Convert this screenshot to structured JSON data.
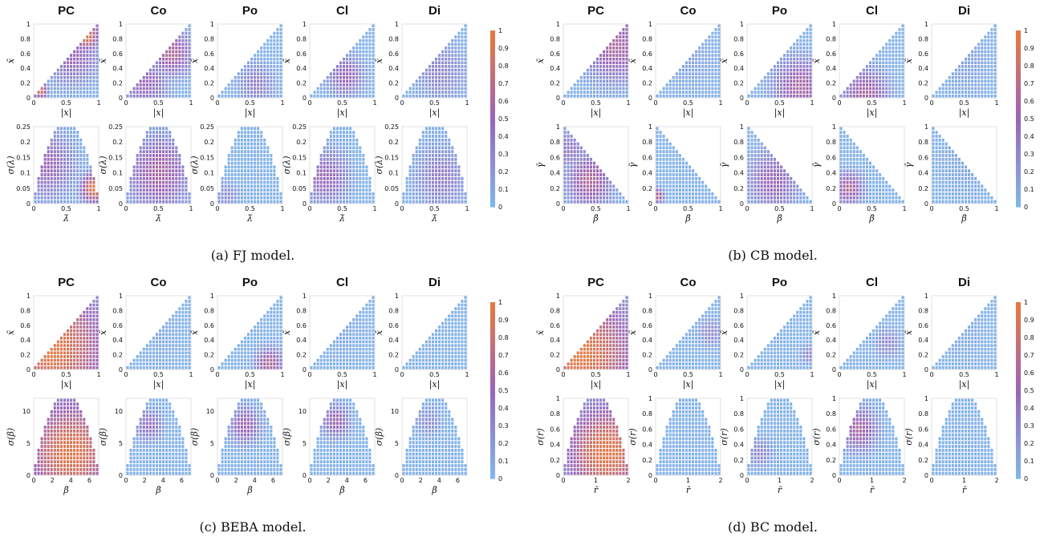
{
  "colorbar": {
    "ticks": [
      "0",
      "0.1",
      "0.2",
      "0.3",
      "0.4",
      "0.5",
      "0.6",
      "0.7",
      "0.8",
      "0.9",
      "1"
    ],
    "low_color": "#7fb8ee",
    "mid_color": "#9a65b8",
    "high_color": "#ea7a3c"
  },
  "chart_data": [
    {
      "type": "heatmap",
      "caption": "(a) FJ model.",
      "columns": [
        "PC",
        "Co",
        "Po",
        "Cl",
        "Di"
      ],
      "colorbar_range": [
        0,
        1
      ],
      "rows": [
        {
          "shape": "triangle",
          "xlabel": "|x|",
          "ylabel": "x̄",
          "xticks": [
            "0",
            "0.5",
            "1"
          ],
          "yticks": [
            "0",
            "0.2",
            "0.4",
            "0.6",
            "0.8",
            "1"
          ],
          "xlim": [
            0,
            1
          ],
          "ylim": [
            0,
            1
          ],
          "grid": 20,
          "hotspots": [
            [
              {
                "x": 0.8,
                "y": 0.85,
                "v": 0.95,
                "s": 0.15
              },
              {
                "x": 0.1,
                "y": 0.1,
                "v": 0.9,
                "s": 0.08
              },
              {
                "x": 0.6,
                "y": 0.6,
                "v": 0.5,
                "s": 0.3
              }
            ],
            [
              {
                "x": 0.7,
                "y": 0.6,
                "v": 0.65,
                "s": 0.22
              },
              {
                "x": 0.3,
                "y": 0.2,
                "v": 0.5,
                "s": 0.25
              }
            ],
            [
              {
                "x": 0.6,
                "y": 0.2,
                "v": 0.35,
                "s": 0.2
              }
            ],
            [
              {
                "x": 0.55,
                "y": 0.3,
                "v": 0.5,
                "s": 0.2
              }
            ],
            [
              {
                "x": 0.6,
                "y": 0.35,
                "v": 0.3,
                "s": 0.3
              }
            ]
          ]
        },
        {
          "shape": "dome",
          "xlabel": "λ̄",
          "ylabel": "σ(λ)",
          "xticks": [
            "0",
            "0.5",
            "1"
          ],
          "yticks": [
            "0",
            "0.05",
            "0.1",
            "0.15",
            "0.2",
            "0.25"
          ],
          "xlim": [
            0,
            1
          ],
          "ylim": [
            0,
            0.25
          ],
          "grid": 20,
          "hotspots": [
            [
              {
                "x": 0.92,
                "y": 0.2,
                "v": 0.95,
                "s": 0.14
              },
              {
                "x": 0.2,
                "y": 0.5,
                "v": 0.5,
                "s": 0.3
              }
            ],
            [
              {
                "x": 0.5,
                "y": 0.4,
                "v": 0.6,
                "s": 0.35
              }
            ],
            [
              {
                "x": 0.15,
                "y": 0.1,
                "v": 0.25,
                "s": 0.15
              }
            ],
            [
              {
                "x": 0.25,
                "y": 0.35,
                "v": 0.5,
                "s": 0.25
              }
            ],
            [
              {
                "x": 0.6,
                "y": 0.35,
                "v": 0.35,
                "s": 0.3
              }
            ]
          ]
        }
      ]
    },
    {
      "type": "heatmap",
      "caption": "(b) CB model.",
      "columns": [
        "PC",
        "Co",
        "Po",
        "Cl",
        "Di"
      ],
      "colorbar_range": [
        0,
        1
      ],
      "rows": [
        {
          "shape": "triangle",
          "xlabel": "|x|",
          "ylabel": "x̄",
          "xticks": [
            "0",
            "0.5",
            "1"
          ],
          "yticks": [
            "0",
            "0.2",
            "0.4",
            "0.6",
            "0.8",
            "1"
          ],
          "xlim": [
            0,
            1
          ],
          "ylim": [
            0,
            1
          ],
          "grid": 20,
          "hotspots": [
            [
              {
                "x": 0.8,
                "y": 0.7,
                "v": 0.6,
                "s": 0.35
              }
            ],
            [
              {
                "x": 0.5,
                "y": 0.5,
                "v": 0.12,
                "s": 0.4
              }
            ],
            [
              {
                "x": 0.8,
                "y": 0.15,
                "v": 0.6,
                "s": 0.28
              }
            ],
            [
              {
                "x": 0.4,
                "y": 0.05,
                "v": 0.6,
                "s": 0.25
              }
            ],
            [
              {
                "x": 0.5,
                "y": 0.5,
                "v": 0.12,
                "s": 0.4
              }
            ]
          ]
        },
        {
          "shape": "triangle_down",
          "xlabel": "β̄",
          "ylabel": "γ̄",
          "xticks": [
            "0",
            "0.5",
            "1"
          ],
          "yticks": [
            "0",
            "0.2",
            "0.4",
            "0.6",
            "0.8",
            "1"
          ],
          "xlim": [
            0,
            1
          ],
          "ylim": [
            0,
            1
          ],
          "grid": 20,
          "hotspots": [
            [
              {
                "x": 0.4,
                "y": 0.3,
                "v": 0.65,
                "s": 0.25
              },
              {
                "x": 0.1,
                "y": 0.7,
                "v": 0.4,
                "s": 0.2
              }
            ],
            [
              {
                "x": 0.03,
                "y": 0.1,
                "v": 0.7,
                "s": 0.07
              }
            ],
            [
              {
                "x": 0.4,
                "y": 0.3,
                "v": 0.5,
                "s": 0.28
              }
            ],
            [
              {
                "x": 0.15,
                "y": 0.2,
                "v": 0.65,
                "s": 0.15
              }
            ],
            [
              {
                "x": 0.5,
                "y": 0.5,
                "v": 0.1,
                "s": 0.4
              }
            ]
          ]
        }
      ]
    },
    {
      "type": "heatmap",
      "caption": "(c) BEBA model.",
      "columns": [
        "PC",
        "Co",
        "Po",
        "Cl",
        "Di"
      ],
      "colorbar_range": [
        0,
        1
      ],
      "rows": [
        {
          "shape": "triangle",
          "xlabel": "|x|",
          "ylabel": "x̄",
          "xticks": [
            "0",
            "0.5",
            "1"
          ],
          "yticks": [
            "0",
            "0.2",
            "0.4",
            "0.6",
            "0.8",
            "1"
          ],
          "xlim": [
            0,
            1
          ],
          "ylim": [
            0,
            1
          ],
          "grid": 20,
          "hotspots": [
            [
              {
                "x": 0.3,
                "y": 0.3,
                "v": 0.97,
                "s": 0.6
              },
              {
                "x": 0.95,
                "y": 0.15,
                "v": 0.45,
                "s": 0.1
              }
            ],
            [
              {
                "x": 0.5,
                "y": 0.5,
                "v": 0.08,
                "s": 0.4
              }
            ],
            [
              {
                "x": 0.8,
                "y": 0.08,
                "v": 0.65,
                "s": 0.15
              }
            ],
            [
              {
                "x": 0.5,
                "y": 0.5,
                "v": 0.08,
                "s": 0.4
              }
            ],
            [
              {
                "x": 0.5,
                "y": 0.5,
                "v": 0.05,
                "s": 0.4
              }
            ]
          ]
        },
        {
          "shape": "dome",
          "xlabel": "β̄",
          "ylabel": "σ(β)",
          "xticks": [
            "0",
            "2",
            "4",
            "6"
          ],
          "yticks": [
            "0",
            "5",
            "10"
          ],
          "xlim": [
            0,
            7
          ],
          "ylim": [
            0,
            12
          ],
          "grid": 20,
          "hotspots": [
            [
              {
                "x": 0.55,
                "y": 0.3,
                "v": 0.95,
                "s": 0.5
              },
              {
                "x": 0.3,
                "y": 0.8,
                "v": 0.5,
                "s": 0.2
              }
            ],
            [
              {
                "x": 0.35,
                "y": 0.65,
                "v": 0.45,
                "s": 0.15
              }
            ],
            [
              {
                "x": 0.42,
                "y": 0.65,
                "v": 0.55,
                "s": 0.17
              }
            ],
            [
              {
                "x": 0.4,
                "y": 0.7,
                "v": 0.55,
                "s": 0.15
              }
            ],
            [
              {
                "x": 0.4,
                "y": 0.7,
                "v": 0.25,
                "s": 0.15
              }
            ]
          ]
        }
      ]
    },
    {
      "type": "heatmap",
      "caption": "(d) BC model.",
      "columns": [
        "PC",
        "Co",
        "Po",
        "Cl",
        "Di"
      ],
      "colorbar_range": [
        0,
        1
      ],
      "rows": [
        {
          "shape": "triangle",
          "xlabel": "|x|",
          "ylabel": "x̄",
          "xticks": [
            "0",
            "0.5",
            "1"
          ],
          "yticks": [
            "0",
            "0.2",
            "0.4",
            "0.6",
            "0.8",
            "1"
          ],
          "xlim": [
            0,
            1
          ],
          "ylim": [
            0,
            1
          ],
          "grid": 20,
          "hotspots": [
            [
              {
                "x": 0.3,
                "y": 0.2,
                "v": 0.97,
                "s": 0.6
              },
              {
                "x": 0.95,
                "y": 0.4,
                "v": 0.55,
                "s": 0.12
              }
            ],
            [
              {
                "x": 0.85,
                "y": 0.5,
                "v": 0.3,
                "s": 0.15
              }
            ],
            [
              {
                "x": 0.95,
                "y": 0.2,
                "v": 0.3,
                "s": 0.1
              }
            ],
            [
              {
                "x": 0.75,
                "y": 0.35,
                "v": 0.3,
                "s": 0.15
              }
            ],
            [
              {
                "x": 0.5,
                "y": 0.5,
                "v": 0.08,
                "s": 0.4
              }
            ]
          ]
        },
        {
          "shape": "dome",
          "xlabel": "r̄",
          "ylabel": "σ(r)",
          "xticks": [
            "0",
            "1",
            "2"
          ],
          "yticks": [
            "0",
            "0.2",
            "0.4",
            "0.6",
            "0.8",
            "1"
          ],
          "xlim": [
            0,
            2
          ],
          "ylim": [
            0,
            1
          ],
          "grid": 20,
          "hotspots": [
            [
              {
                "x": 0.65,
                "y": 0.3,
                "v": 0.97,
                "s": 0.45
              },
              {
                "x": 0.2,
                "y": 0.5,
                "v": 0.55,
                "s": 0.2
              }
            ],
            [
              {
                "x": 0.5,
                "y": 0.5,
                "v": 0.05,
                "s": 0.4
              }
            ],
            [
              {
                "x": 0.2,
                "y": 0.3,
                "v": 0.3,
                "s": 0.15
              }
            ],
            [
              {
                "x": 0.3,
                "y": 0.6,
                "v": 0.6,
                "s": 0.2
              }
            ],
            [
              {
                "x": 0.5,
                "y": 0.5,
                "v": 0.05,
                "s": 0.4
              }
            ]
          ]
        }
      ]
    }
  ]
}
